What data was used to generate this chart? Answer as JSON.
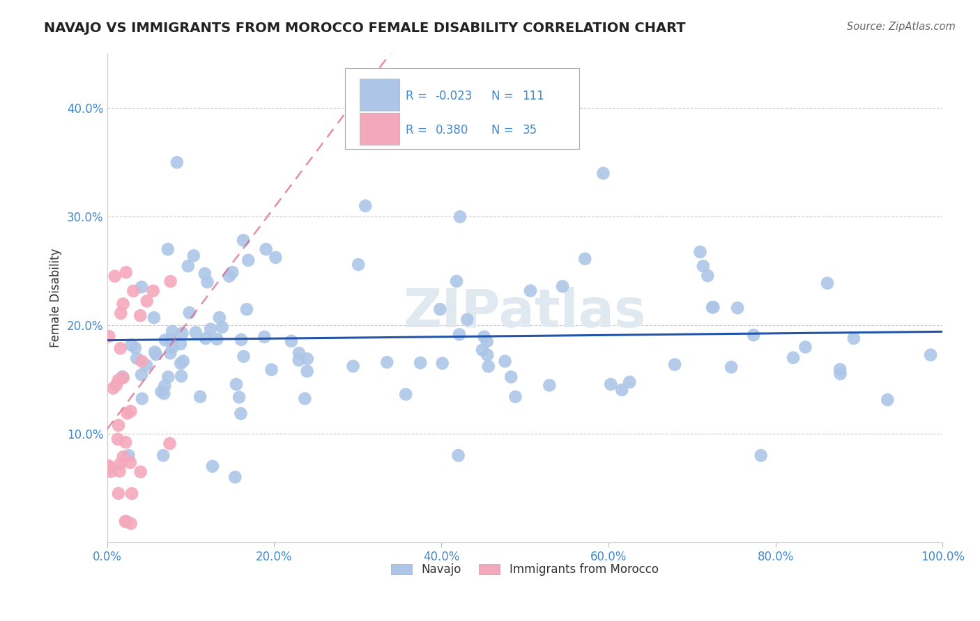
{
  "title": "NAVAJO VS IMMIGRANTS FROM MOROCCO FEMALE DISABILITY CORRELATION CHART",
  "source": "Source: ZipAtlas.com",
  "ylabel": "Female Disability",
  "navajo_R": -0.023,
  "navajo_N": 111,
  "morocco_R": 0.38,
  "morocco_N": 35,
  "xlim": [
    0.0,
    1.0
  ],
  "ylim": [
    0.0,
    0.45
  ],
  "xtick_labels": [
    "0.0%",
    "20.0%",
    "40.0%",
    "60.0%",
    "80.0%",
    "100.0%"
  ],
  "ytick_labels": [
    "",
    "10.0%",
    "20.0%",
    "30.0%",
    "40.0%"
  ],
  "navajo_color": "#adc6e8",
  "morocco_color": "#f4a8bc",
  "navajo_line_color": "#2255aa",
  "morocco_line_color": "#d96080",
  "background_color": "#ffffff",
  "grid_color": "#cccccc",
  "tick_color": "#4488cc",
  "legend_text_color": "#4488cc",
  "watermark_color": "#e0e8f0",
  "title_color": "#222222",
  "ylabel_color": "#333333"
}
